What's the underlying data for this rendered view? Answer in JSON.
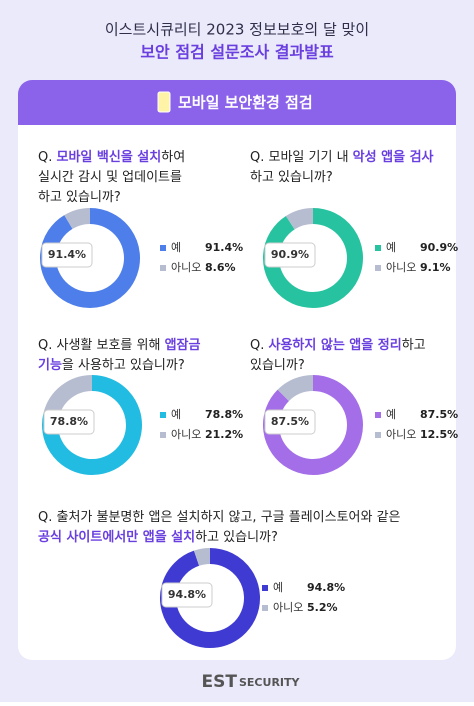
{
  "header": {
    "line1": "이스트시큐리티 2023 정보보호의 달 맞이",
    "line2": "보안 점검 설문조사 결과발표"
  },
  "section_title": "모바일 보안환경 점검",
  "logo": [
    "EST",
    "SECURITY"
  ],
  "chart_data": [
    {
      "type": "pie",
      "title_lines": [
        [
          {
            "text": "Q. "
          },
          {
            "text": "모바일 백신을 설치",
            "highlight": true
          },
          {
            "text": "하여"
          }
        ],
        [
          {
            "text": "실시간 감시 및 업데이트를"
          }
        ],
        [
          {
            "text": "하고 있습니까?"
          }
        ]
      ],
      "categories": [
        "예",
        "아니오"
      ],
      "values": [
        91.4,
        8.6
      ],
      "value_labels": [
        "91.4%",
        "8.6%"
      ],
      "colors": [
        "#4d7ee9",
        "#b7bdd0"
      ]
    },
    {
      "type": "pie",
      "title_lines": [
        [
          {
            "text": "Q. "
          },
          {
            "text": "모바일 기기 내 "
          },
          {
            "text": "악성 앱을 검사",
            "highlight": true
          }
        ],
        [
          {
            "text": "하고 있습니까?"
          }
        ]
      ],
      "categories": [
        "예",
        "아니오"
      ],
      "values": [
        90.9,
        9.1
      ],
      "value_labels": [
        "90.9%",
        "9.1%"
      ],
      "colors": [
        "#27c3a0",
        "#b7bdd0"
      ]
    },
    {
      "type": "pie",
      "title_lines": [
        [
          {
            "text": "Q. "
          },
          {
            "text": "사생활 보호를 위해 "
          },
          {
            "text": "앱잠금",
            "highlight": true
          }
        ],
        [
          {
            "text": "기능",
            "highlight": true
          },
          {
            "text": "을 사용하고 있습니까?"
          }
        ]
      ],
      "categories": [
        "예",
        "아니오"
      ],
      "values": [
        78.8,
        21.2
      ],
      "value_labels": [
        "78.8%",
        "21.2%"
      ],
      "colors": [
        "#22bce2",
        "#b7bdd0"
      ]
    },
    {
      "type": "pie",
      "title_lines": [
        [
          {
            "text": "Q. "
          },
          {
            "text": "사용하지 않는 앱을 정리",
            "highlight": true
          },
          {
            "text": "하고"
          }
        ],
        [
          {
            "text": "있습니까?"
          }
        ]
      ],
      "categories": [
        "예",
        "아니오"
      ],
      "values": [
        87.5,
        12.5
      ],
      "value_labels": [
        "87.5%",
        "12.5%"
      ],
      "colors": [
        "#a46ee9",
        "#b7bdd0"
      ]
    },
    {
      "type": "pie",
      "title_lines": [
        [
          {
            "text": "Q. "
          },
          {
            "text": "출처가 불분명한 앱은 설치하지 않고, 구글 플레이스토어와 같은"
          }
        ],
        [
          {
            "text": "공식 사이트에서만 앱을 설치",
            "highlight": true
          },
          {
            "text": "하고 있습니까?"
          }
        ]
      ],
      "categories": [
        "예",
        "아니오"
      ],
      "values": [
        94.8,
        5.2
      ],
      "value_labels": [
        "94.8%",
        "5.2%"
      ],
      "colors": [
        "#3f3bd2",
        "#b7bdd0"
      ]
    }
  ]
}
